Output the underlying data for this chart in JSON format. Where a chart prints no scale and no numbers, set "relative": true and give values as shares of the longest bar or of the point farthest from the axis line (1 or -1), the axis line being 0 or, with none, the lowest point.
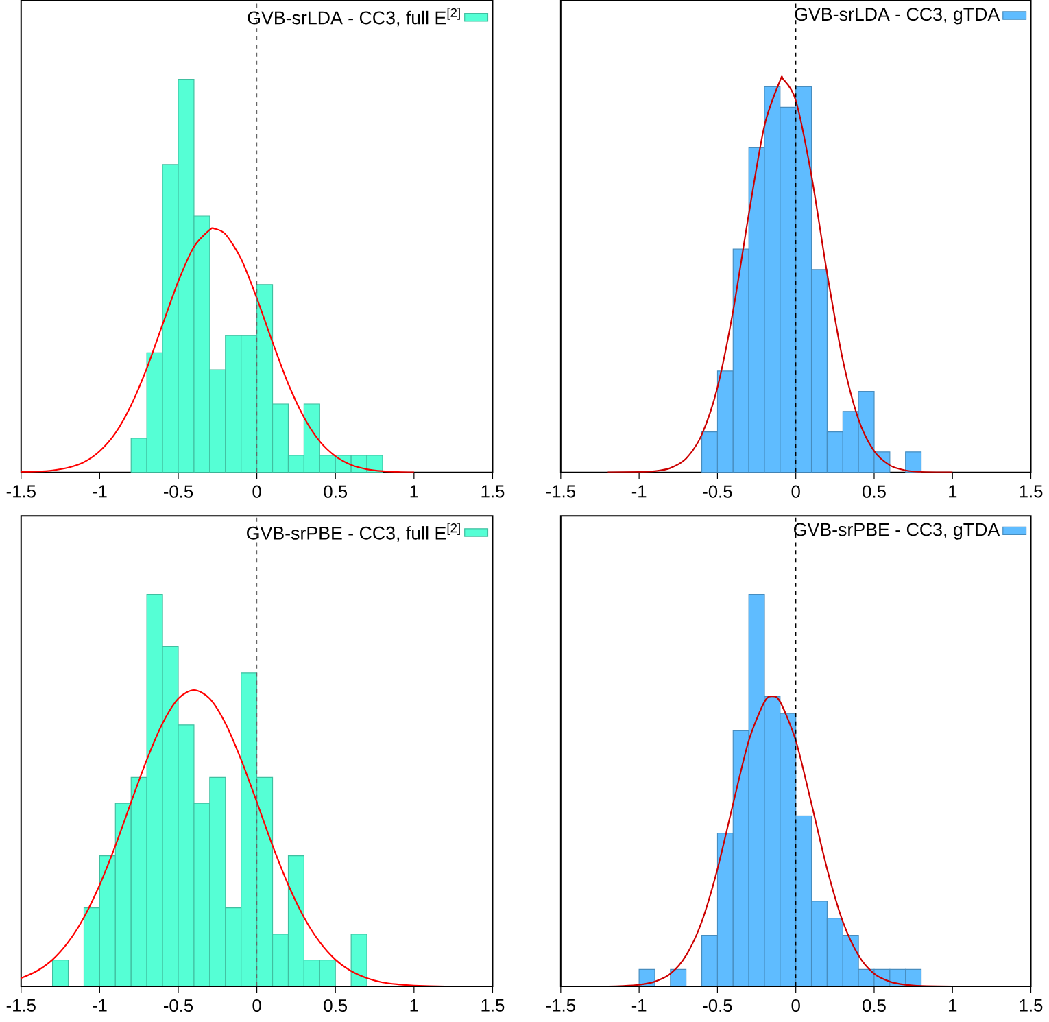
{
  "chart_data": [
    {
      "type": "histogram",
      "relative": true,
      "bins": [
        -0.8,
        -0.7,
        -0.6,
        -0.5,
        -0.4,
        -0.3,
        -0.2,
        -0.1,
        0,
        0.1,
        0.2,
        0.3,
        0.4,
        0.5,
        0.6,
        0.7,
        0.8
      ],
      "xlim": [
        -1.5,
        1.5
      ],
      "xticks": [
        -1.5,
        -1,
        -0.5,
        0,
        0.5,
        1,
        1.5
      ],
      "legend": "top right",
      "series": [
        {
          "name": "GVB-srLDA - CC3, full E$^{[2]}$",
          "color": "#55ffd5",
          "values": [
            0.087,
            0.304,
            0.783,
            1,
            0.652,
            0.261,
            0.348,
            0.348,
            0.478,
            0.174,
            0.043,
            0.174,
            0.043,
            0.043,
            0.043,
            0.043
          ]
        },
        {
          "type": "line",
          "color": "#ff0000",
          "x": [
            -1.5,
            -1.4,
            -1.3,
            -1.2,
            -1.1,
            -1.0,
            -0.9,
            -0.8,
            -0.7,
            -0.6,
            -0.5,
            -0.4,
            -0.3,
            -0.27,
            -0.2,
            -0.1,
            0,
            0.1,
            0.2,
            0.3,
            0.4,
            0.5,
            0.6,
            0.7,
            0.8,
            0.9,
            1.0
          ],
          "values": [
            0.001,
            0.002,
            0.005,
            0.012,
            0.026,
            0.054,
            0.1,
            0.171,
            0.265,
            0.376,
            0.486,
            0.574,
            0.617,
            0.62,
            0.606,
            0.543,
            0.443,
            0.331,
            0.225,
            0.14,
            0.079,
            0.041,
            0.019,
            0.008,
            0.003,
            0.001,
            0
          ]
        }
      ],
      "ref_lines": [
        {
          "axis": "x",
          "value": 0,
          "line_style": "dashed",
          "color": "#666666"
        }
      ]
    },
    {
      "type": "histogram",
      "relative": true,
      "bins": [
        -0.6,
        -0.5,
        -0.4,
        -0.3,
        -0.2,
        -0.1,
        0,
        0.1,
        0.2,
        0.3,
        0.4,
        0.5,
        0.6,
        0.7,
        0.8
      ],
      "xlim": [
        -1.5,
        1.5
      ],
      "xticks": [
        -1.5,
        -1,
        -0.5,
        0,
        0.5,
        1,
        1.5
      ],
      "legend": "top right",
      "series": [
        {
          "name": "GVB-srLDA - CC3, gTDA",
          "color": "#5fbcff",
          "values": [
            0.103,
            0.258,
            0.568,
            0.826,
            0.981,
            0.929,
            0.981,
            0.516,
            0.103,
            0.155,
            0.206,
            0.052,
            0,
            0.052
          ]
        },
        {
          "type": "line",
          "color": "#cc0000",
          "x": [
            -1.2,
            -1.0,
            -0.9,
            -0.8,
            -0.7,
            -0.6,
            -0.5,
            -0.4,
            -0.3,
            -0.2,
            -0.1,
            -0.08,
            0,
            0.1,
            0.2,
            0.3,
            0.4,
            0.5,
            0.6,
            0.7,
            0.8,
            1.0
          ],
          "values": [
            0,
            0.001,
            0.003,
            0.011,
            0.035,
            0.096,
            0.216,
            0.411,
            0.657,
            0.882,
            0.997,
            1,
            0.946,
            0.755,
            0.506,
            0.286,
            0.135,
            0.054,
            0.018,
            0.005,
            0.001,
            0
          ]
        }
      ],
      "ref_lines": [
        {
          "axis": "x",
          "value": 0,
          "line_style": "dashed",
          "color": "#000000"
        }
      ]
    },
    {
      "type": "histogram",
      "relative": true,
      "bins": [
        -1.3,
        -1.2,
        -1.1,
        -1.0,
        -0.9,
        -0.8,
        -0.7,
        -0.6,
        -0.5,
        -0.4,
        -0.3,
        -0.2,
        -0.1,
        0,
        0.1,
        0.2,
        0.3,
        0.4,
        0.5,
        0.6,
        0.7
      ],
      "xlim": [
        -1.5,
        1.5
      ],
      "xticks": [
        -1.5,
        -1,
        -0.5,
        0,
        0.5,
        1,
        1.5
      ],
      "legend": "top right",
      "series": [
        {
          "name": "GVB-srPBE - CC3, full E$^{[2]}$",
          "color": "#55ffd5",
          "values": [
            0.067,
            0,
            0.2,
            0.333,
            0.467,
            0.533,
            1,
            0.867,
            0.667,
            0.467,
            0.533,
            0.2,
            0.8,
            0.533,
            0.133,
            0.333,
            0.067,
            0.067,
            0,
            0.133
          ]
        },
        {
          "type": "line",
          "color": "#ff0000",
          "x": [
            -1.5,
            -1.4,
            -1.3,
            -1.2,
            -1.1,
            -1.0,
            -0.9,
            -0.8,
            -0.7,
            -0.6,
            -0.5,
            -0.4,
            -0.3,
            -0.2,
            -0.1,
            0,
            0.1,
            0.2,
            0.3,
            0.4,
            0.5,
            0.6,
            0.7,
            0.8,
            0.9,
            1.0,
            1.2,
            1.5
          ],
          "values": [
            0.021,
            0.039,
            0.068,
            0.113,
            0.176,
            0.259,
            0.359,
            0.47,
            0.578,
            0.671,
            0.734,
            0.756,
            0.734,
            0.671,
            0.578,
            0.47,
            0.359,
            0.259,
            0.176,
            0.113,
            0.068,
            0.039,
            0.021,
            0.01,
            0.005,
            0.002,
            0,
            0
          ]
        }
      ],
      "ref_lines": [
        {
          "axis": "x",
          "value": 0,
          "line_style": "dashed",
          "color": "#666666"
        }
      ]
    },
    {
      "type": "histogram",
      "relative": true,
      "bins": [
        -1.0,
        -0.9,
        -0.8,
        -0.7,
        -0.6,
        -0.5,
        -0.4,
        -0.3,
        -0.2,
        -0.1,
        0,
        0.1,
        0.2,
        0.3,
        0.4,
        0.5,
        0.6,
        0.7,
        0.8
      ],
      "xlim": [
        -1.5,
        1.5
      ],
      "xticks": [
        -1.5,
        -1,
        -0.5,
        0,
        0.5,
        1,
        1.5
      ],
      "legend": "top right",
      "series": [
        {
          "name": "GVB-srPBE - CC3, gTDA",
          "color": "#5fbcff",
          "values": [
            0.043,
            0,
            0.043,
            0,
            0.13,
            0.391,
            0.652,
            1,
            0.739,
            0.696,
            0.435,
            0.217,
            0.174,
            0.13,
            0.043,
            0.043,
            0.043,
            0.043
          ]
        },
        {
          "type": "line",
          "color": "#cc0000",
          "x": [
            -1.5,
            -1.2,
            -1.1,
            -1.0,
            -0.9,
            -0.8,
            -0.7,
            -0.6,
            -0.5,
            -0.4,
            -0.3,
            -0.2,
            -0.15,
            -0.1,
            0,
            0.1,
            0.2,
            0.3,
            0.4,
            0.5,
            0.6,
            0.7,
            0.8,
            1.0,
            1.5
          ],
          "values": [
            0,
            0,
            0.001,
            0.004,
            0.012,
            0.032,
            0.079,
            0.165,
            0.299,
            0.466,
            0.627,
            0.726,
            0.74,
            0.726,
            0.627,
            0.466,
            0.299,
            0.165,
            0.079,
            0.032,
            0.012,
            0.004,
            0.001,
            0,
            0
          ]
        }
      ],
      "ref_lines": [
        {
          "axis": "x",
          "value": 0,
          "line_style": "dashed",
          "color": "#000000"
        }
      ]
    }
  ]
}
